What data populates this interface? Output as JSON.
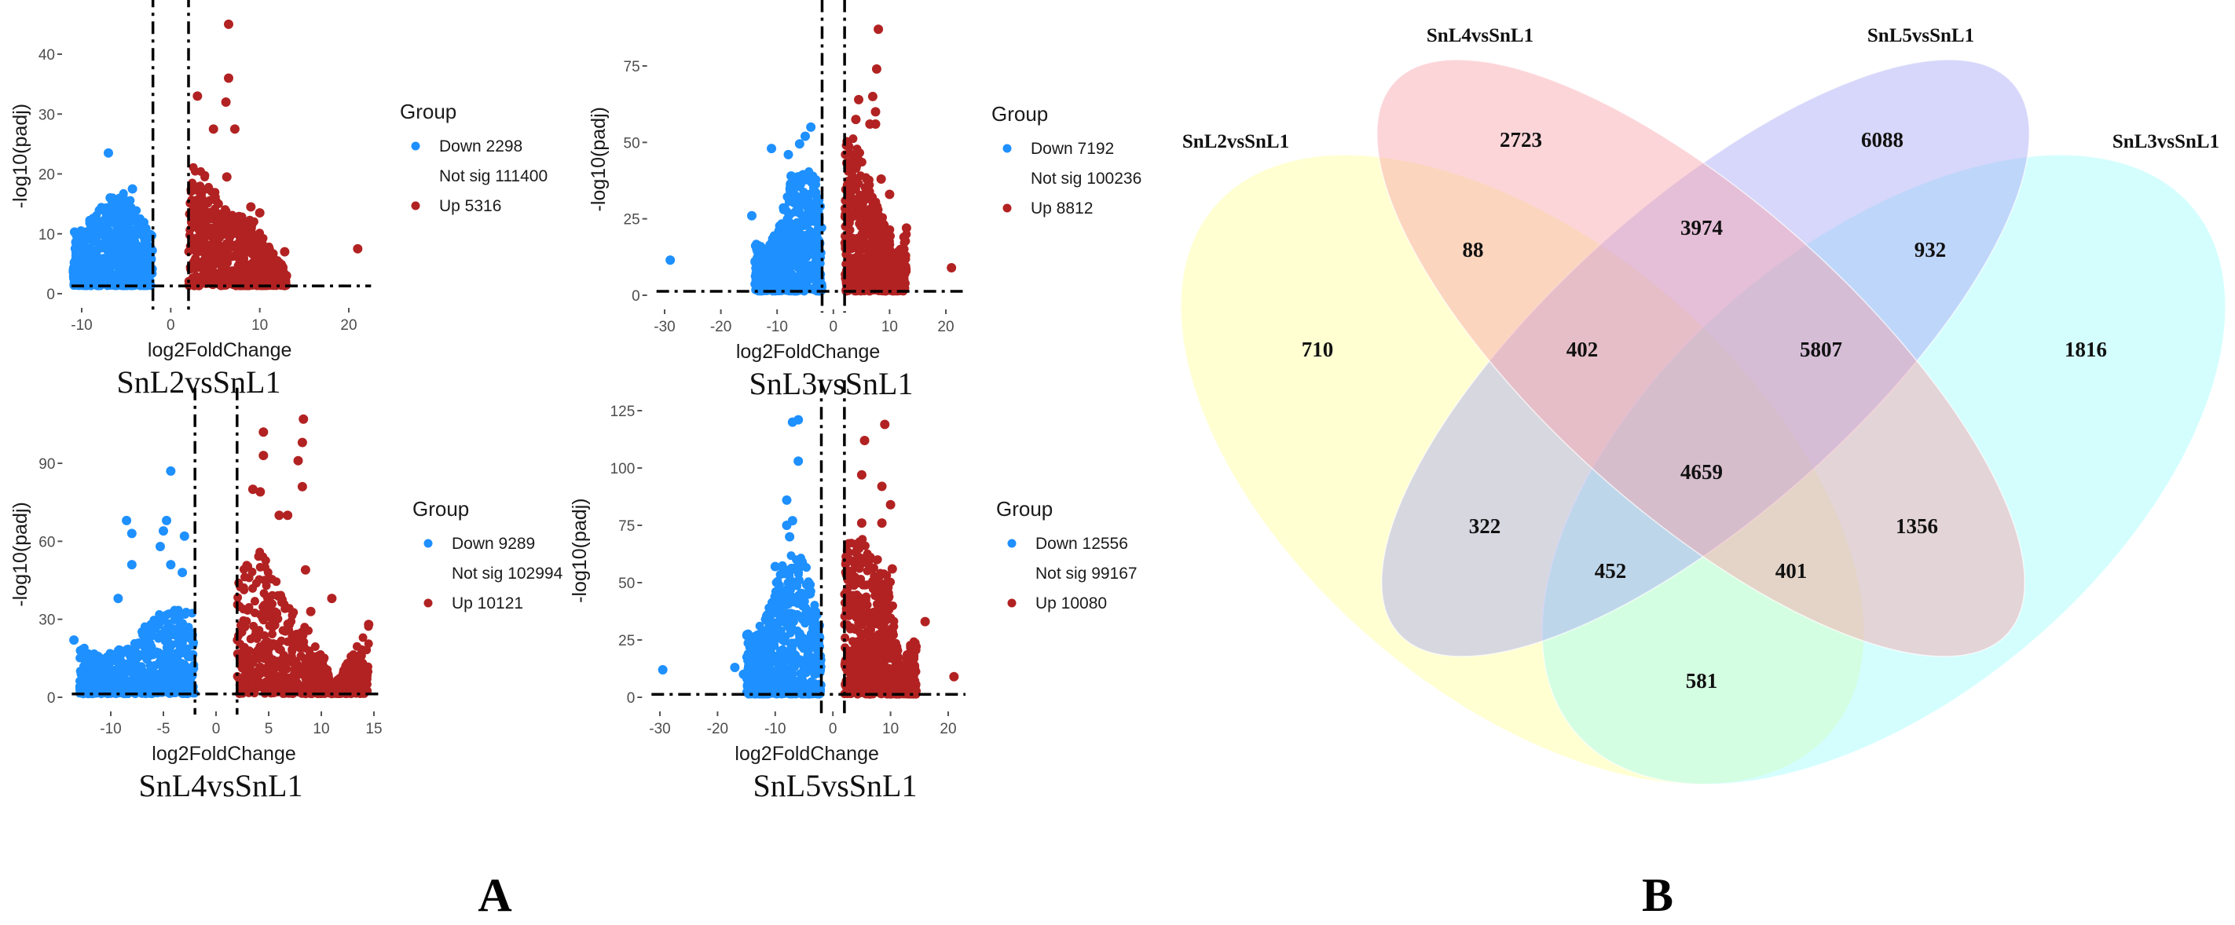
{
  "panel_labels": {
    "a": "A",
    "b": "B"
  },
  "colors": {
    "down": "#1e90ff",
    "up": "#b22222",
    "threshold": "#000000"
  },
  "chart_data": [
    {
      "type": "scatter",
      "title": "SnL2vsSnL1",
      "xlabel": "log2FoldChange",
      "ylabel": "-log10(padj)",
      "xlim": [
        -11.5,
        22.5
      ],
      "ylim": [
        -1.5,
        46
      ],
      "xticks": [
        -10,
        0,
        10,
        20
      ],
      "yticks": [
        0,
        10,
        20,
        30,
        40
      ],
      "thresholds": {
        "x": [
          -2,
          2
        ],
        "y": 1.3
      },
      "legend": {
        "title": "Group",
        "position": "right",
        "items": [
          {
            "label": "Down 2298",
            "color": "#1e90ff"
          },
          {
            "label": "Not sig 111400",
            "color": null
          },
          {
            "label": "Up 5316",
            "color": "#b22222"
          }
        ]
      },
      "series": [
        {
          "name": "Down",
          "color": "#1e90ff",
          "envelope": [
            [
              -11,
              9
            ],
            [
              -9,
              13
            ],
            [
              -7,
              16
            ],
            [
              -5,
              17
            ],
            [
              -3.5,
              13
            ],
            [
              -2,
              10
            ]
          ],
          "points": [
            [
              -7,
              23.5
            ],
            [
              -10.8,
              10.3
            ],
            [
              -4.3,
              17.5
            ],
            [
              -5.5,
              15.5
            ],
            [
              -6.8,
              16
            ],
            [
              -8.5,
              9
            ],
            [
              -9.8,
              2.5
            ]
          ]
        },
        {
          "name": "Up",
          "color": "#b22222",
          "envelope": [
            [
              2,
              21
            ],
            [
              3,
              22
            ],
            [
              5,
              17
            ],
            [
              7,
              13
            ],
            [
              9,
              13
            ],
            [
              10.5,
              9
            ],
            [
              12.5,
              5
            ],
            [
              13,
              3
            ]
          ],
          "points": [
            [
              6.5,
              45
            ],
            [
              6.5,
              36
            ],
            [
              6.2,
              32
            ],
            [
              3,
              33
            ],
            [
              4.8,
              27.5
            ],
            [
              7.2,
              27.5
            ],
            [
              21,
              7.5
            ],
            [
              9,
              14.5
            ],
            [
              10,
              13.5
            ],
            [
              6.3,
              19.5
            ],
            [
              12.8,
              7
            ],
            [
              13,
              3
            ]
          ]
        }
      ]
    },
    {
      "type": "scatter",
      "title": "SnL3vsSnL1",
      "xlabel": "log2FoldChange",
      "ylabel": "-log10(padj)",
      "xlim": [
        -32,
        23
      ],
      "ylim": [
        -2,
        89
      ],
      "xticks": [
        -30,
        -20,
        -10,
        0,
        10,
        20
      ],
      "yticks": [
        0,
        25,
        50,
        75
      ],
      "thresholds": {
        "x": [
          -2,
          2
        ],
        "y": 1.3
      },
      "legend": {
        "title": "Group",
        "position": "right",
        "items": [
          {
            "label": "Down 7192",
            "color": "#1e90ff"
          },
          {
            "label": "Not sig 100236",
            "color": null
          },
          {
            "label": "Up 8812",
            "color": "#b22222"
          }
        ]
      },
      "series": [
        {
          "name": "Down",
          "color": "#1e90ff",
          "envelope": [
            [
              -14,
              20
            ],
            [
              -12,
              14
            ],
            [
              -10,
              22
            ],
            [
              -8,
              36
            ],
            [
              -5,
              42
            ],
            [
              -3,
              38
            ],
            [
              -2,
              30
            ]
          ],
          "points": [
            [
              -29,
              11.5
            ],
            [
              -14.5,
              26
            ],
            [
              -11,
              48
            ],
            [
              -4,
              55
            ],
            [
              -5,
              52
            ],
            [
              -6,
              49.5
            ],
            [
              -8,
              46
            ],
            [
              -7.5,
              39
            ]
          ]
        },
        {
          "name": "Up",
          "color": "#b22222",
          "envelope": [
            [
              2,
              50
            ],
            [
              4,
              52
            ],
            [
              6,
              40
            ],
            [
              8,
              28
            ],
            [
              10,
              22
            ],
            [
              13,
              22
            ],
            [
              11,
              12
            ]
          ],
          "points": [
            [
              8,
              87
            ],
            [
              7.7,
              74
            ],
            [
              4.5,
              64
            ],
            [
              7,
              65
            ],
            [
              7.5,
              60
            ],
            [
              7.5,
              56
            ],
            [
              6.5,
              56
            ],
            [
              4,
              57.5
            ],
            [
              21,
              9
            ],
            [
              8.5,
              38
            ],
            [
              10,
              33
            ],
            [
              13,
              22
            ]
          ]
        }
      ]
    },
    {
      "type": "scatter",
      "title": "SnL4vsSnL1",
      "xlabel": "log2FoldChange",
      "ylabel": "-log10(padj)",
      "xlim": [
        -14,
        15.5
      ],
      "ylim": [
        -3,
        110
      ],
      "xticks": [
        -10,
        -5,
        0,
        5,
        10,
        15
      ],
      "yticks": [
        0,
        30,
        60,
        90
      ],
      "thresholds": {
        "x": [
          -2,
          2
        ],
        "y": 1.3
      },
      "legend": {
        "title": "Group",
        "position": "right",
        "items": [
          {
            "label": "Down 9289",
            "color": "#1e90ff"
          },
          {
            "label": "Not sig 102994",
            "color": null
          },
          {
            "label": "Up 10121",
            "color": "#b22222"
          }
        ]
      },
      "series": [
        {
          "name": "Down",
          "color": "#1e90ff",
          "envelope": [
            [
              -13,
              20
            ],
            [
              -11,
              16
            ],
            [
              -8,
              20
            ],
            [
              -6,
              32
            ],
            [
              -4,
              34
            ],
            [
              -2,
              33
            ]
          ],
          "points": [
            [
              -4.3,
              87
            ],
            [
              -8.5,
              68
            ],
            [
              -4.7,
              68
            ],
            [
              -8,
              63
            ],
            [
              -5,
              64
            ],
            [
              -3,
              62
            ],
            [
              -9.3,
              38
            ],
            [
              -13.5,
              22
            ],
            [
              -5.3,
              58
            ],
            [
              -8,
              51
            ],
            [
              -4.3,
              51
            ],
            [
              -3.2,
              48
            ]
          ]
        },
        {
          "name": "Up",
          "color": "#b22222",
          "envelope": [
            [
              2,
              48
            ],
            [
              4,
              60
            ],
            [
              6,
              42
            ],
            [
              8,
              30
            ],
            [
              10,
              20
            ],
            [
              14.5,
              28
            ],
            [
              12,
              10
            ],
            [
              11,
              4
            ]
          ],
          "points": [
            [
              8.3,
              107
            ],
            [
              4.5,
              102
            ],
            [
              8.2,
              98
            ],
            [
              4.5,
              93
            ],
            [
              7.8,
              91
            ],
            [
              8.2,
              81
            ],
            [
              3.5,
              80
            ],
            [
              4.2,
              79
            ],
            [
              6,
              70
            ],
            [
              6.8,
              70
            ],
            [
              8.5,
              49
            ],
            [
              11,
              38
            ],
            [
              14.5,
              28
            ],
            [
              13,
              8
            ],
            [
              9,
              33
            ],
            [
              10.5,
              3
            ]
          ]
        }
      ]
    },
    {
      "type": "scatter",
      "title": "SnL5vsSnL1",
      "xlabel": "log2FoldChange",
      "ylabel": "-log10(padj)",
      "xlim": [
        -32,
        23
      ],
      "ylim": [
        -3,
        128
      ],
      "xticks": [
        -30,
        -20,
        -10,
        0,
        10,
        20
      ],
      "yticks": [
        0,
        25,
        50,
        75,
        100,
        125
      ],
      "thresholds": {
        "x": [
          -2,
          2
        ],
        "y": 1.3
      },
      "legend": {
        "title": "Group",
        "position": "right",
        "items": [
          {
            "label": "Down 12556",
            "color": "#1e90ff"
          },
          {
            "label": "Not sig 99167",
            "color": null
          },
          {
            "label": "Up 10080",
            "color": "#b22222"
          }
        ]
      },
      "series": [
        {
          "name": "Down",
          "color": "#1e90ff",
          "envelope": [
            [
              -15,
              28
            ],
            [
              -12,
              32
            ],
            [
              -10,
              50
            ],
            [
              -8,
              62
            ],
            [
              -5,
              62
            ],
            [
              -3,
              40
            ],
            [
              -2,
              28
            ]
          ],
          "points": [
            [
              -29.5,
              12
            ],
            [
              -7,
              120
            ],
            [
              -6,
              121
            ],
            [
              -6,
              103
            ],
            [
              -8,
              86
            ],
            [
              -7,
              77
            ],
            [
              -8,
              75
            ],
            [
              -17,
              13
            ],
            [
              -15.5,
              10
            ],
            [
              -10,
              57
            ],
            [
              -7.5,
              70
            ]
          ]
        },
        {
          "name": "Up",
          "color": "#b22222",
          "envelope": [
            [
              2,
              68
            ],
            [
              5,
              70
            ],
            [
              8,
              60
            ],
            [
              10,
              52
            ],
            [
              13,
              24
            ],
            [
              14.5,
              28
            ],
            [
              12,
              5
            ]
          ],
          "points": [
            [
              9,
              119
            ],
            [
              5.5,
              112
            ],
            [
              5,
              97
            ],
            [
              8.5,
              92
            ],
            [
              10,
              84
            ],
            [
              8.5,
              76
            ],
            [
              5,
              76
            ],
            [
              21,
              9
            ],
            [
              16,
              33
            ],
            [
              10.3,
              56
            ]
          ]
        }
      ]
    },
    {
      "type": "venn",
      "sets": [
        "SnL2vsSnL1",
        "SnL4vsSnL1",
        "SnL5vsSnL1",
        "SnL3vsSnL1"
      ],
      "set_colors": [
        "#ffff99",
        "#f99aa5",
        "#a0a0f5",
        "#8ffcfc"
      ],
      "regions": [
        {
          "sets": [
            "SnL4vsSnL1"
          ],
          "value": "2723"
        },
        {
          "sets": [
            "SnL5vsSnL1"
          ],
          "value": "6088"
        },
        {
          "sets": [
            "SnL2vsSnL1",
            "SnL4vsSnL1"
          ],
          "value": "88"
        },
        {
          "sets": [
            "SnL4vsSnL1",
            "SnL5vsSnL1"
          ],
          "value": "3974"
        },
        {
          "sets": [
            "SnL5vsSnL1",
            "SnL3vsSnL1"
          ],
          "value": "932"
        },
        {
          "sets": [
            "SnL2vsSnL1"
          ],
          "value": "710"
        },
        {
          "sets": [
            "SnL2vsSnL1",
            "SnL4vsSnL1",
            "SnL5vsSnL1"
          ],
          "value": "402"
        },
        {
          "sets": [
            "SnL4vsSnL1",
            "SnL5vsSnL1",
            "SnL3vsSnL1"
          ],
          "value": "5807"
        },
        {
          "sets": [
            "SnL3vsSnL1"
          ],
          "value": "1816"
        },
        {
          "sets": [
            "SnL2vsSnL1",
            "SnL4vsSnL1",
            "SnL5vsSnL1",
            "SnL3vsSnL1"
          ],
          "value": "4659"
        },
        {
          "sets": [
            "SnL2vsSnL1",
            "SnL5vsSnL1"
          ],
          "value": "322"
        },
        {
          "sets": [
            "SnL4vsSnL1",
            "SnL3vsSnL1"
          ],
          "value": "1356"
        },
        {
          "sets": [
            "SnL2vsSnL1",
            "SnL5vsSnL1",
            "SnL3vsSnL1"
          ],
          "value": "452"
        },
        {
          "sets": [
            "SnL2vsSnL1",
            "SnL4vsSnL1",
            "SnL3vsSnL1"
          ],
          "value": "401"
        },
        {
          "sets": [
            "SnL2vsSnL1",
            "SnL3vsSnL1"
          ],
          "value": "581"
        }
      ]
    }
  ]
}
